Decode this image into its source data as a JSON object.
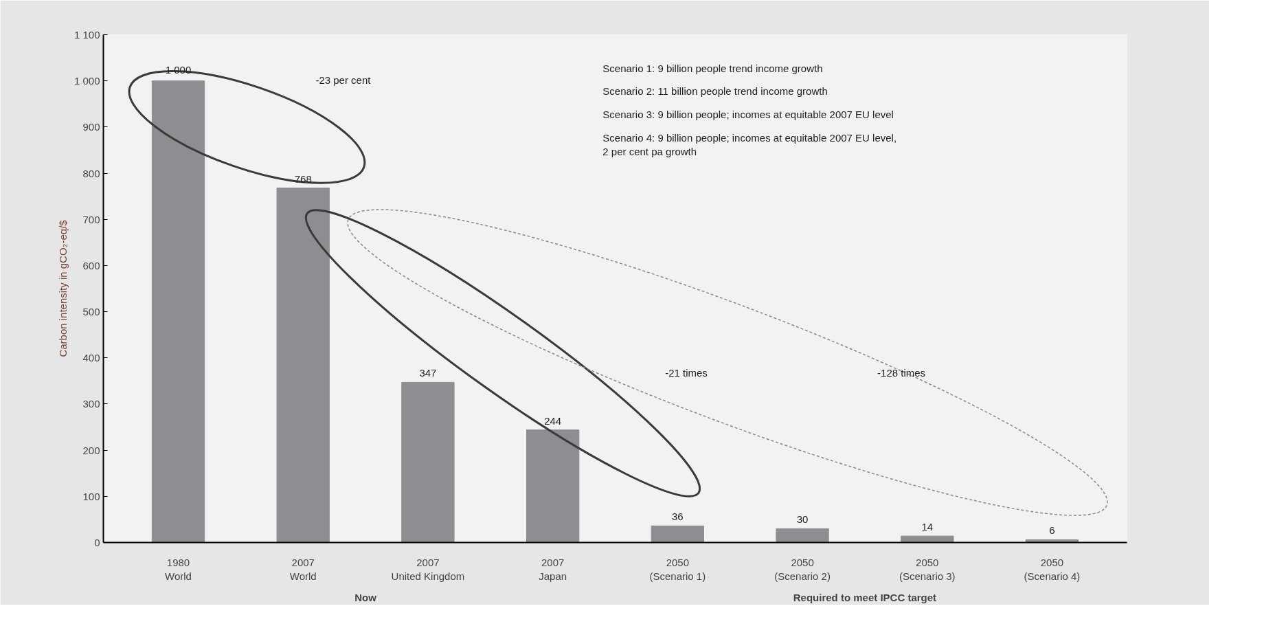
{
  "chart_data": {
    "type": "bar",
    "ylabel": "Carbon intensity in gCO₂-eq/$",
    "categories": [
      "1980\nWorld",
      "2007\nWorld",
      "2007\nUnited Kingdom",
      "2007\nJapan",
      "2050\n(Scenario 1)",
      "2050\n(Scenario 2)",
      "2050\n(Scenario 3)",
      "2050\n(Scenario 4)"
    ],
    "values": [
      1000,
      768,
      347,
      244,
      36,
      30,
      14,
      6
    ],
    "value_labels": [
      "1 000",
      "768",
      "347",
      "244",
      "36",
      "30",
      "14",
      "6"
    ],
    "color": "#8e8e92",
    "ylim": [
      0,
      1100
    ],
    "yticks": [
      0,
      100,
      200,
      300,
      400,
      500,
      600,
      700,
      800,
      900,
      {
        "value": 1000,
        "label": "1 000"
      },
      {
        "value": 1100,
        "label": "1 100"
      }
    ],
    "grid": false,
    "annotations": [
      "Scenario 1:   9 billion people trend income growth",
      "Scenario 2: 11 billion people trend income growth",
      "Scenario 3:   9 billion people; incomes at equitable 2007 EU level",
      "Scenario 4:   9 billion people; incomes at equitable 2007 EU level,\n                      2 per cent pa growth",
      "-23 per cent",
      "-21 times",
      "-128 times",
      "Now",
      "Required to meet IPCC target"
    ]
  }
}
